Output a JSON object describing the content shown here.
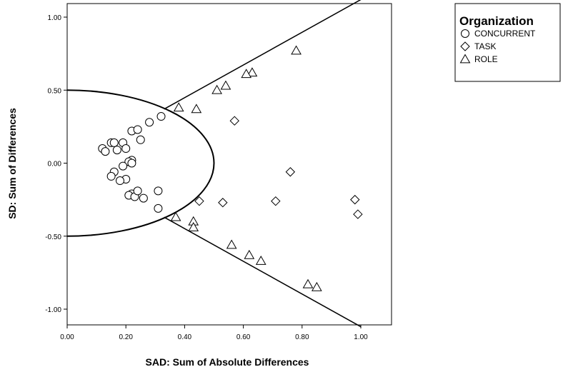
{
  "chart_data": {
    "type": "scatter",
    "title": "",
    "xlabel": "SAD: Sum of Absolute Differences",
    "ylabel": "SD: Sum of Differences",
    "xlim": [
      0,
      1.0
    ],
    "ylim": [
      -1.12,
      1.1
    ],
    "x_ticks": [
      0.0,
      0.2,
      0.4,
      0.6,
      0.8,
      1.0
    ],
    "x_tick_labels": [
      "0.00",
      "0.20",
      "0.40",
      "0.60",
      "0.80",
      "1.00"
    ],
    "y_ticks": [
      1.0,
      0.5,
      0.0,
      -0.5,
      -1.0
    ],
    "y_tick_labels": [
      "1.00",
      "0.50",
      "0.00",
      "-0.50",
      "-1.00"
    ],
    "grid": false,
    "legend": {
      "title": "Organization",
      "placement": "right-outside-top",
      "entries": [
        "CONCURRENT",
        "TASK",
        "ROLE"
      ]
    },
    "series": [
      {
        "name": "CONCURRENT",
        "marker": "circle",
        "points": [
          [
            0.12,
            0.1
          ],
          [
            0.13,
            0.08
          ],
          [
            0.15,
            0.14
          ],
          [
            0.16,
            0.14
          ],
          [
            0.17,
            0.09
          ],
          [
            0.19,
            0.14
          ],
          [
            0.2,
            0.1
          ],
          [
            0.22,
            0.22
          ],
          [
            0.24,
            0.23
          ],
          [
            0.25,
            0.16
          ],
          [
            0.28,
            0.28
          ],
          [
            0.32,
            0.32
          ],
          [
            0.22,
            0.02
          ],
          [
            0.21,
            0.01
          ],
          [
            0.22,
            0.0
          ],
          [
            0.19,
            -0.02
          ],
          [
            0.16,
            -0.06
          ],
          [
            0.15,
            -0.09
          ],
          [
            0.2,
            -0.11
          ],
          [
            0.18,
            -0.12
          ],
          [
            0.22,
            -0.21
          ],
          [
            0.21,
            -0.22
          ],
          [
            0.23,
            -0.23
          ],
          [
            0.24,
            -0.19
          ],
          [
            0.26,
            -0.24
          ],
          [
            0.31,
            -0.19
          ],
          [
            0.31,
            -0.31
          ]
        ]
      },
      {
        "name": "TASK",
        "marker": "diamond",
        "points": [
          [
            0.57,
            0.29
          ],
          [
            0.76,
            -0.06
          ],
          [
            0.45,
            -0.26
          ],
          [
            0.53,
            -0.27
          ],
          [
            0.71,
            -0.26
          ],
          [
            0.98,
            -0.25
          ],
          [
            0.99,
            -0.35
          ]
        ]
      },
      {
        "name": "ROLE",
        "marker": "triangle",
        "points": [
          [
            0.78,
            0.77
          ],
          [
            0.63,
            0.62
          ],
          [
            0.61,
            0.61
          ],
          [
            0.54,
            0.53
          ],
          [
            0.51,
            0.5
          ],
          [
            0.38,
            0.38
          ],
          [
            0.44,
            0.37
          ],
          [
            0.37,
            -0.37
          ],
          [
            0.43,
            -0.4
          ],
          [
            0.43,
            -0.44
          ],
          [
            0.56,
            -0.56
          ],
          [
            0.62,
            -0.63
          ],
          [
            0.66,
            -0.67
          ],
          [
            0.82,
            -0.83
          ],
          [
            0.85,
            -0.85
          ]
        ]
      }
    ],
    "reference_lines": [
      {
        "from": [
          0.33,
          0.37
        ],
        "to": [
          1.0,
          1.12
        ]
      },
      {
        "from": [
          0.33,
          -0.37
        ],
        "to": [
          1.0,
          -1.12
        ]
      }
    ],
    "reference_ellipse": {
      "center": [
        0.0,
        0.0
      ],
      "rx": 0.5,
      "ry": 0.5
    }
  }
}
